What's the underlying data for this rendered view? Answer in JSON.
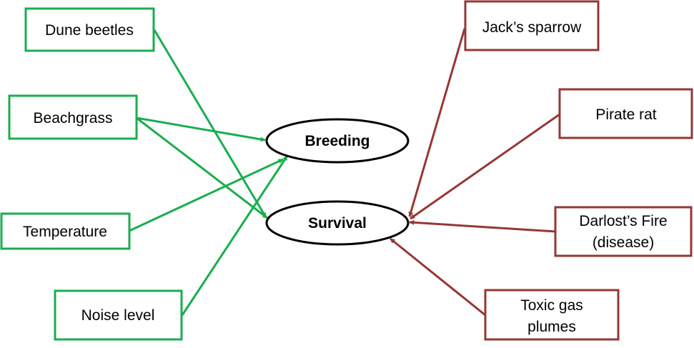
{
  "colors": {
    "positive": "#1aad4f",
    "negative": "#953735",
    "outcome_stroke": "#000000"
  },
  "outcomes": {
    "breeding": "Breeding",
    "survival": "Survival"
  },
  "positive_factors": {
    "dune_beetles": "Dune beetles",
    "beachgrass": "Beachgrass",
    "temperature": "Temperature",
    "noise_level": "Noise level"
  },
  "negative_factors": {
    "jacks_sparrow": "Jack’s sparrow",
    "pirate_rat": "Pirate rat",
    "darlosts_fire": [
      "Darlost’s Fire",
      "(disease)"
    ],
    "toxic_gas": [
      "Toxic gas",
      "plumes"
    ]
  }
}
